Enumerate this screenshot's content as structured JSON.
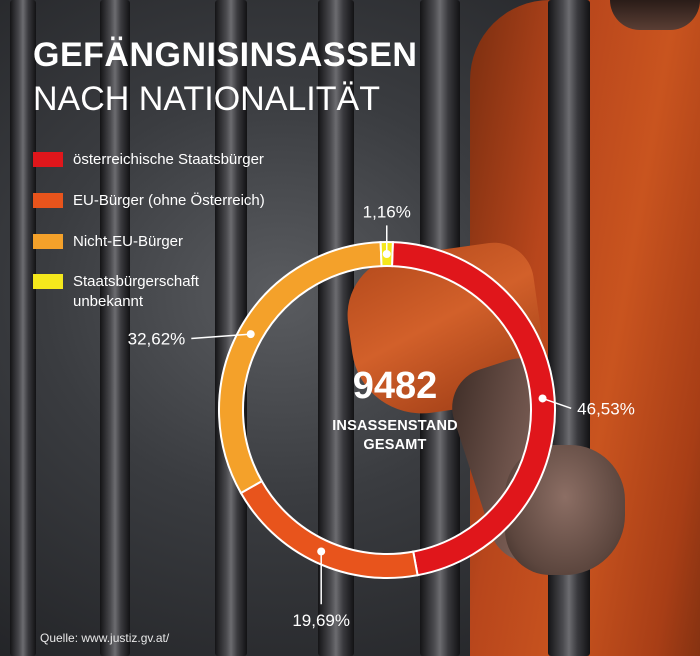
{
  "title": {
    "line1": "GEFÄNGNISINSASSEN",
    "line2": "NACH NATIONALITÄT"
  },
  "legend": [
    {
      "label": "österreichische Staatsbürger",
      "color": "#e0161b"
    },
    {
      "label": "EU-Bürger (ohne Österreich)",
      "color": "#e8541c"
    },
    {
      "label": "Nicht-EU-Bürger",
      "color": "#f4a12a"
    },
    {
      "label": "Staatsbürgerschaft unbekannt",
      "color": "#f5e81c"
    }
  ],
  "center": {
    "total": "9482",
    "label_line1": "INSASSENSTAND",
    "label_line2": "GESAMT"
  },
  "source": "Quelle: www.justiz.gv.at/",
  "chart_data": {
    "type": "pie",
    "style": "donut",
    "start_angle_deg": 2,
    "slices": [
      {
        "name": "österreichische Staatsbürger",
        "value": 46.53,
        "label": "46,53%",
        "color": "#e0161b"
      },
      {
        "name": "EU-Bürger (ohne Österreich)",
        "value": 19.69,
        "label": "19,69%",
        "color": "#e8541c"
      },
      {
        "name": "Nicht-EU-Bürger",
        "value": 32.62,
        "label": "32,62%",
        "color": "#f4a12a"
      },
      {
        "name": "Staatsbürgerschaft unbekannt",
        "value": 1.16,
        "label": "1,16%",
        "color": "#f5e81c"
      }
    ]
  }
}
